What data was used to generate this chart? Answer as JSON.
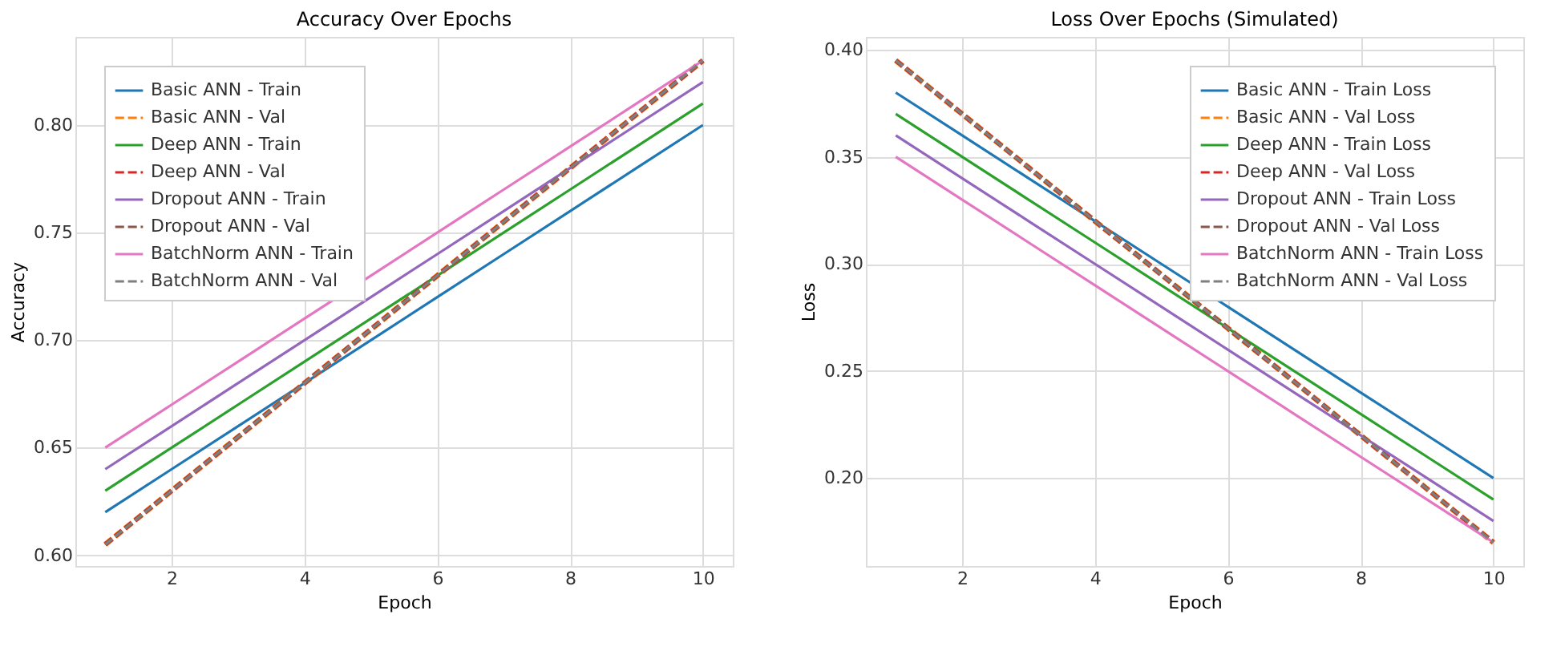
{
  "chart_data": [
    {
      "type": "line",
      "title": "Accuracy Over Epochs",
      "xlabel": "Epoch",
      "ylabel": "Accuracy",
      "x": [
        1,
        2,
        3,
        4,
        5,
        6,
        7,
        8,
        9,
        10
      ],
      "xlim": [
        0.55,
        10.45
      ],
      "xticks": [
        2,
        4,
        6,
        8,
        10
      ],
      "ylim": [
        0.595,
        0.841
      ],
      "yticks": [
        {
          "value": 0.6,
          "label": "0.60"
        },
        0.65,
        {
          "value": 0.7,
          "label": "0.70"
        },
        0.75,
        {
          "value": 0.8,
          "label": "0.80"
        }
      ],
      "grid": true,
      "legend": "top left",
      "series": [
        {
          "name": "Basic ANN - Train",
          "color": "#1f77b4",
          "line_style": "solid",
          "values": [
            0.62,
            0.64,
            0.66,
            0.68,
            0.7,
            0.72,
            0.74,
            0.76,
            0.78,
            0.8
          ]
        },
        {
          "name": "Basic ANN - Val",
          "color": "#ff7f0e",
          "line_style": "dashed",
          "values": [
            0.605,
            0.63,
            0.655,
            0.68,
            0.705,
            0.73,
            0.755,
            0.78,
            0.805,
            0.83
          ]
        },
        {
          "name": "Deep ANN - Train",
          "color": "#2ca02c",
          "line_style": "solid",
          "values": [
            0.63,
            0.65,
            0.67,
            0.69,
            0.71,
            0.73,
            0.75,
            0.77,
            0.79,
            0.81
          ]
        },
        {
          "name": "Deep ANN - Val",
          "color": "#d62728",
          "line_style": "dashed",
          "values": [
            0.605,
            0.63,
            0.655,
            0.68,
            0.705,
            0.73,
            0.755,
            0.78,
            0.805,
            0.83
          ]
        },
        {
          "name": "Dropout ANN - Train",
          "color": "#9467bd",
          "line_style": "solid",
          "values": [
            0.64,
            0.66,
            0.68,
            0.7,
            0.72,
            0.74,
            0.76,
            0.78,
            0.8,
            0.82
          ]
        },
        {
          "name": "Dropout ANN - Val",
          "color": "#8c564b",
          "line_style": "dashed",
          "values": [
            0.605,
            0.63,
            0.655,
            0.68,
            0.705,
            0.73,
            0.755,
            0.78,
            0.805,
            0.83
          ]
        },
        {
          "name": "BatchNorm ANN - Train",
          "color": "#e377c2",
          "line_style": "solid",
          "values": [
            0.65,
            0.67,
            0.69,
            0.71,
            0.73,
            0.75,
            0.77,
            0.79,
            0.81,
            0.83
          ]
        },
        {
          "name": "BatchNorm ANN - Val",
          "color": "#7f7f7f",
          "line_style": "dashed",
          "values": [
            0.605,
            0.63,
            0.655,
            0.68,
            0.705,
            0.73,
            0.755,
            0.78,
            0.805,
            0.83
          ]
        }
      ]
    },
    {
      "type": "line",
      "title": "Loss Over Epochs (Simulated)",
      "xlabel": "Epoch",
      "ylabel": "Loss",
      "x": [
        1,
        2,
        3,
        4,
        5,
        6,
        7,
        8,
        9,
        10
      ],
      "xlim": [
        0.55,
        10.45
      ],
      "xticks": [
        2,
        4,
        6,
        8,
        10
      ],
      "ylim": [
        0.159,
        0.406
      ],
      "yticks": [
        {
          "value": 0.2,
          "label": "0.20"
        },
        0.25,
        {
          "value": 0.3,
          "label": "0.30"
        },
        0.35,
        {
          "value": 0.4,
          "label": "0.40"
        }
      ],
      "grid": true,
      "legend": "top right",
      "series": [
        {
          "name": "Basic ANN - Train Loss",
          "color": "#1f77b4",
          "line_style": "solid",
          "values": [
            0.38,
            0.36,
            0.34,
            0.32,
            0.3,
            0.28,
            0.26,
            0.24,
            0.22,
            0.2
          ]
        },
        {
          "name": "Basic ANN - Val Loss",
          "color": "#ff7f0e",
          "line_style": "dashed",
          "values": [
            0.395,
            0.37,
            0.345,
            0.32,
            0.295,
            0.27,
            0.245,
            0.22,
            0.195,
            0.17
          ]
        },
        {
          "name": "Deep ANN - Train Loss",
          "color": "#2ca02c",
          "line_style": "solid",
          "values": [
            0.37,
            0.35,
            0.33,
            0.31,
            0.29,
            0.27,
            0.25,
            0.23,
            0.21,
            0.19
          ]
        },
        {
          "name": "Deep ANN - Val Loss",
          "color": "#d62728",
          "line_style": "dashed",
          "values": [
            0.395,
            0.37,
            0.345,
            0.32,
            0.295,
            0.27,
            0.245,
            0.22,
            0.195,
            0.17
          ]
        },
        {
          "name": "Dropout ANN - Train Loss",
          "color": "#9467bd",
          "line_style": "solid",
          "values": [
            0.36,
            0.34,
            0.32,
            0.3,
            0.28,
            0.26,
            0.24,
            0.22,
            0.2,
            0.18
          ]
        },
        {
          "name": "Dropout ANN - Val Loss",
          "color": "#8c564b",
          "line_style": "dashed",
          "values": [
            0.395,
            0.37,
            0.345,
            0.32,
            0.295,
            0.27,
            0.245,
            0.22,
            0.195,
            0.17
          ]
        },
        {
          "name": "BatchNorm ANN - Train Loss",
          "color": "#e377c2",
          "line_style": "solid",
          "values": [
            0.35,
            0.33,
            0.31,
            0.29,
            0.27,
            0.25,
            0.23,
            0.21,
            0.19,
            0.17
          ]
        },
        {
          "name": "BatchNorm ANN - Val Loss",
          "color": "#7f7f7f",
          "line_style": "dashed",
          "values": [
            0.395,
            0.37,
            0.345,
            0.32,
            0.295,
            0.27,
            0.245,
            0.22,
            0.195,
            0.17
          ]
        }
      ]
    }
  ]
}
